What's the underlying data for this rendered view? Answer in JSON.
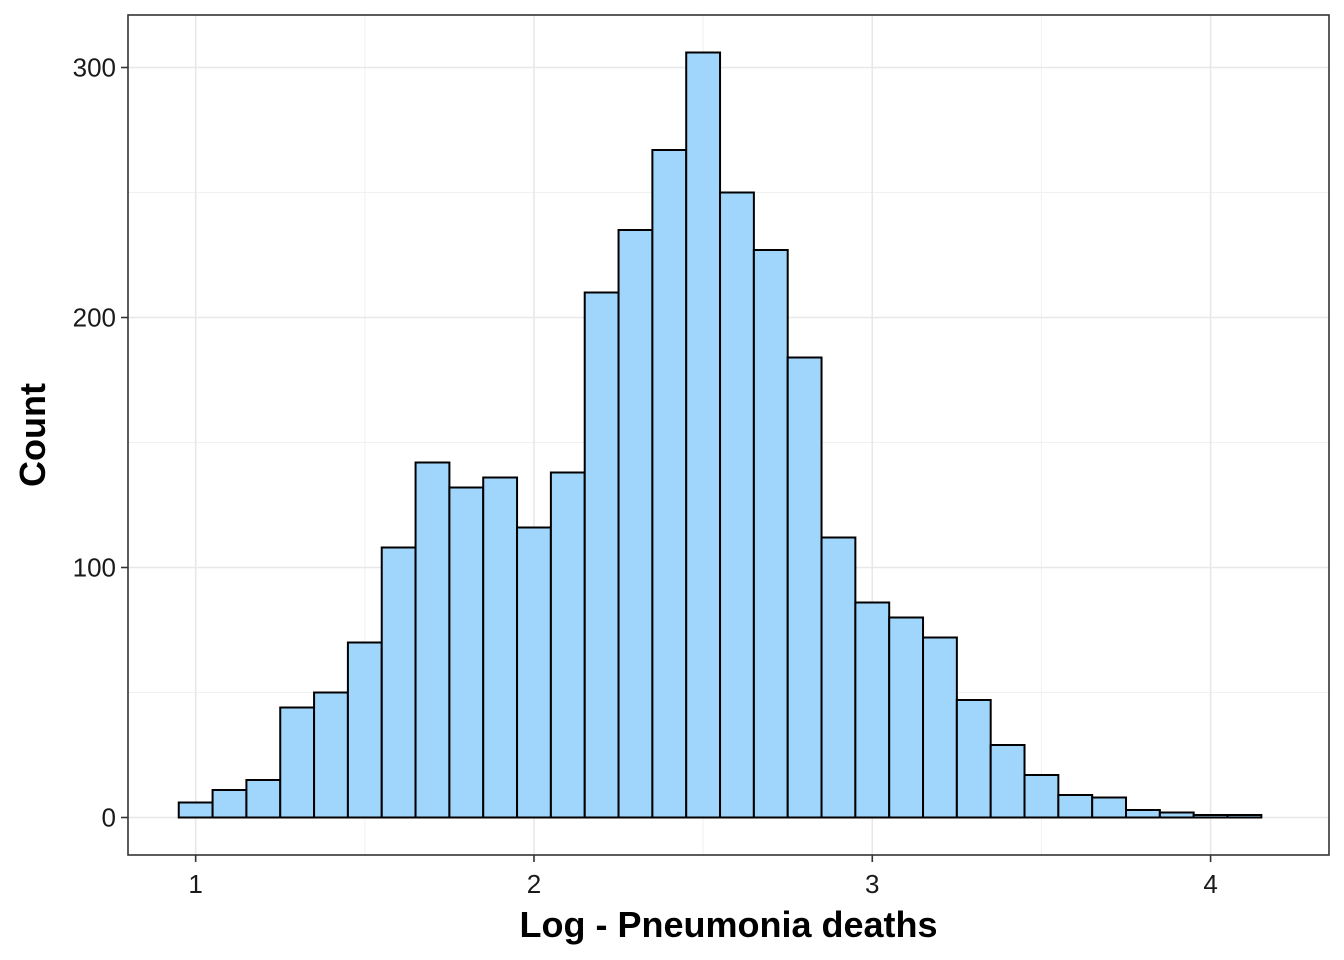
{
  "chart_data": {
    "type": "bar",
    "xlabel": "Log - Pneumonia deaths",
    "ylabel": "Count",
    "xlim": [
      0.8,
      4.35
    ],
    "ylim": [
      -15,
      321
    ],
    "x_ticks": [
      1,
      2,
      3,
      4
    ],
    "y_ticks": [
      0,
      100,
      200,
      300
    ],
    "grid": true,
    "bar_color": "#a0d6fc",
    "bar_outline": "#000000",
    "bins": [
      {
        "x0": 0.95,
        "x1": 1.05,
        "count": 6
      },
      {
        "x0": 1.05,
        "x1": 1.15,
        "count": 11
      },
      {
        "x0": 1.15,
        "x1": 1.25,
        "count": 15
      },
      {
        "x0": 1.25,
        "x1": 1.35,
        "count": 44
      },
      {
        "x0": 1.35,
        "x1": 1.45,
        "count": 50
      },
      {
        "x0": 1.45,
        "x1": 1.55,
        "count": 70
      },
      {
        "x0": 1.55,
        "x1": 1.65,
        "count": 108
      },
      {
        "x0": 1.65,
        "x1": 1.75,
        "count": 142
      },
      {
        "x0": 1.75,
        "x1": 1.85,
        "count": 132
      },
      {
        "x0": 1.85,
        "x1": 1.95,
        "count": 136
      },
      {
        "x0": 1.95,
        "x1": 2.05,
        "count": 116
      },
      {
        "x0": 2.05,
        "x1": 2.15,
        "count": 138
      },
      {
        "x0": 2.15,
        "x1": 2.25,
        "count": 210
      },
      {
        "x0": 2.25,
        "x1": 2.35,
        "count": 235
      },
      {
        "x0": 2.35,
        "x1": 2.45,
        "count": 267
      },
      {
        "x0": 2.45,
        "x1": 2.55,
        "count": 306
      },
      {
        "x0": 2.55,
        "x1": 2.65,
        "count": 250
      },
      {
        "x0": 2.65,
        "x1": 2.75,
        "count": 227
      },
      {
        "x0": 2.75,
        "x1": 2.85,
        "count": 184
      },
      {
        "x0": 2.85,
        "x1": 2.95,
        "count": 112
      },
      {
        "x0": 2.95,
        "x1": 3.05,
        "count": 86
      },
      {
        "x0": 3.05,
        "x1": 3.15,
        "count": 80
      },
      {
        "x0": 3.15,
        "x1": 3.25,
        "count": 72
      },
      {
        "x0": 3.25,
        "x1": 3.35,
        "count": 47
      },
      {
        "x0": 3.35,
        "x1": 3.45,
        "count": 29
      },
      {
        "x0": 3.45,
        "x1": 3.55,
        "count": 17
      },
      {
        "x0": 3.55,
        "x1": 3.65,
        "count": 9
      },
      {
        "x0": 3.65,
        "x1": 3.75,
        "count": 8
      },
      {
        "x0": 3.75,
        "x1": 3.85,
        "count": 3
      },
      {
        "x0": 3.85,
        "x1": 3.95,
        "count": 2
      },
      {
        "x0": 3.95,
        "x1": 4.05,
        "count": 1
      },
      {
        "x0": 4.05,
        "x1": 4.15,
        "count": 1
      }
    ]
  }
}
